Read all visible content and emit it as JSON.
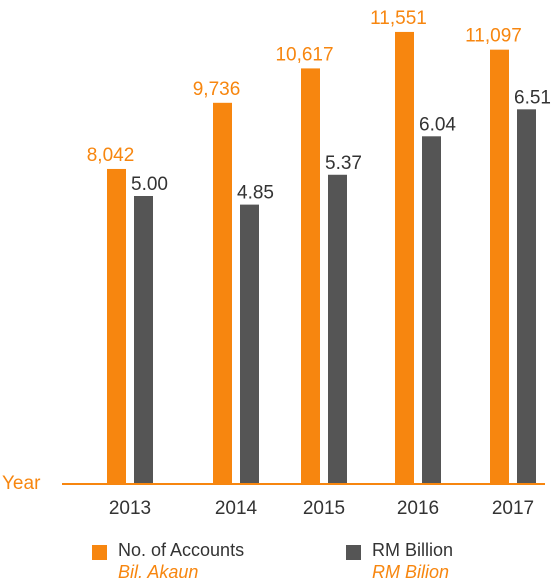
{
  "chart_data": {
    "type": "bar",
    "categories": [
      "2013",
      "2014",
      "2015",
      "2016",
      "2017"
    ],
    "series": [
      {
        "name": "No. of Accounts",
        "name_alt": "Bil. Akaun",
        "color": "#F7860F",
        "values": [
          8042,
          9736,
          10617,
          11551,
          11097
        ],
        "value_labels": [
          "8,042",
          "9,736",
          "10,617",
          "11,551",
          "11,097"
        ]
      },
      {
        "name": "RM Billion",
        "name_alt": "RM Bilion",
        "color": "#555555",
        "values": [
          5.0,
          4.85,
          5.37,
          6.04,
          6.51
        ],
        "value_labels": [
          "5.00",
          "4.85",
          "5.37",
          "6.04",
          "6.51"
        ]
      }
    ],
    "xlabel": "Year",
    "axis_color": "#F7860F",
    "grid": false,
    "legend_position": "bottom"
  }
}
